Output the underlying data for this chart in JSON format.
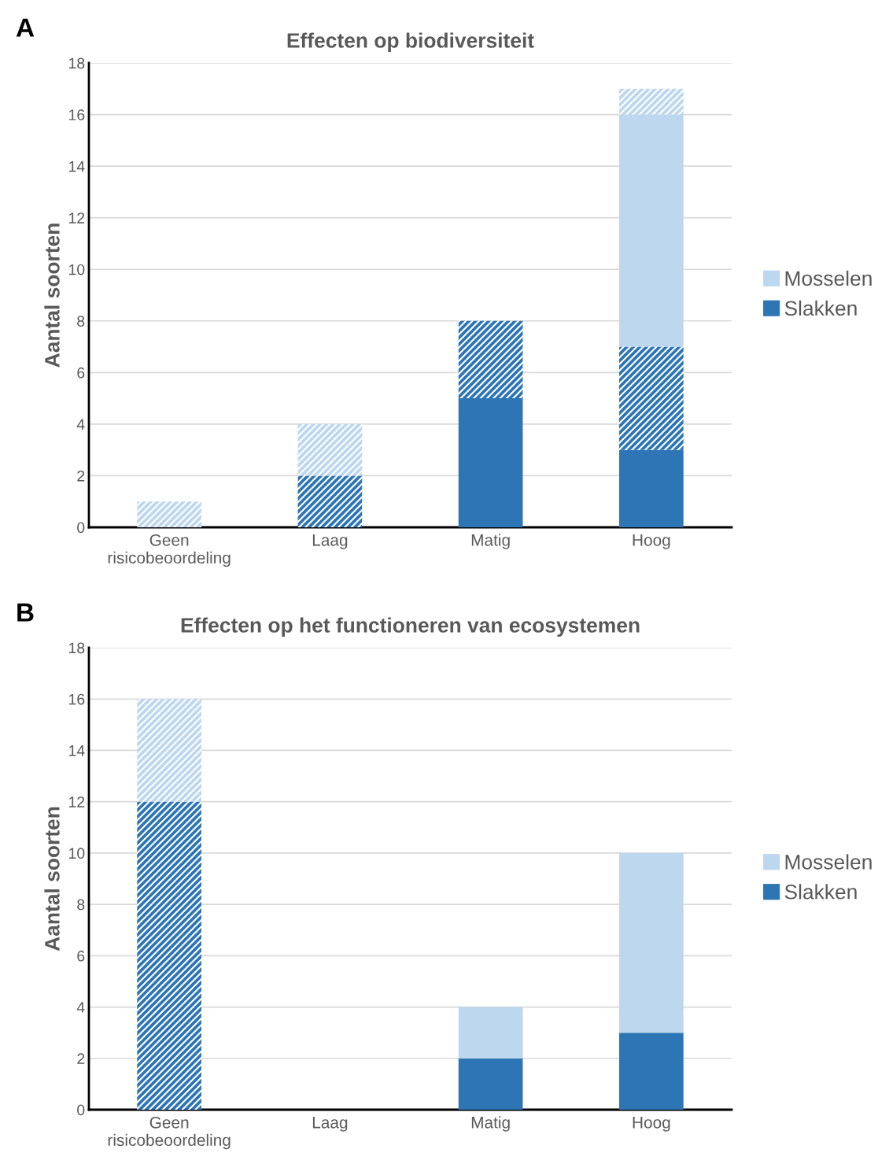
{
  "chart_data": [
    {
      "type": "bar",
      "stacked": true,
      "title": "Effecten op biodiversiteit",
      "ylabel": "Aantal soorten",
      "annotations": [
        "A"
      ],
      "categories": [
        "Geen\nrisicobeoordeling",
        "Laag",
        "Matig",
        "Hoog"
      ],
      "series": [
        {
          "name": "Slakken",
          "color": "#2e75b6",
          "values": [
            0,
            0,
            5,
            3
          ]
        },
        {
          "color": "#2e75b6",
          "values": [
            0,
            2,
            3,
            4
          ]
        },
        {
          "name": "Mosselen",
          "color": "#bdd7ee",
          "values": [
            0,
            0,
            0,
            9
          ]
        },
        {
          "color": "#bdd7ee",
          "values": [
            1,
            2,
            0,
            1
          ]
        }
      ],
      "ylim": [
        0,
        18
      ],
      "yticks": [
        0,
        2,
        4,
        6,
        8,
        10,
        12,
        14,
        16,
        18
      ],
      "grid": "y",
      "legend": "right"
    },
    {
      "type": "bar",
      "stacked": true,
      "title": "Effecten op het functioneren van ecosystemen",
      "ylabel": "Aantal soorten",
      "annotations": [
        "B"
      ],
      "categories": [
        "Geen\nrisicobeoordeling",
        "Laag",
        "Matig",
        "Hoog"
      ],
      "series": [
        {
          "name": "Slakken",
          "color": "#2e75b6",
          "values": [
            0,
            0,
            2,
            3
          ]
        },
        {
          "color": "#2e75b6",
          "values": [
            12,
            0,
            0,
            0
          ]
        },
        {
          "name": "Mosselen",
          "color": "#bdd7ee",
          "values": [
            0,
            0,
            2,
            7
          ]
        },
        {
          "color": "#bdd7ee",
          "values": [
            4,
            0,
            0,
            0
          ]
        }
      ],
      "ylim": [
        0,
        18
      ],
      "yticks": [
        0,
        2,
        4,
        6,
        8,
        10,
        12,
        14,
        16,
        18
      ],
      "grid": "y",
      "legend": "right"
    }
  ]
}
